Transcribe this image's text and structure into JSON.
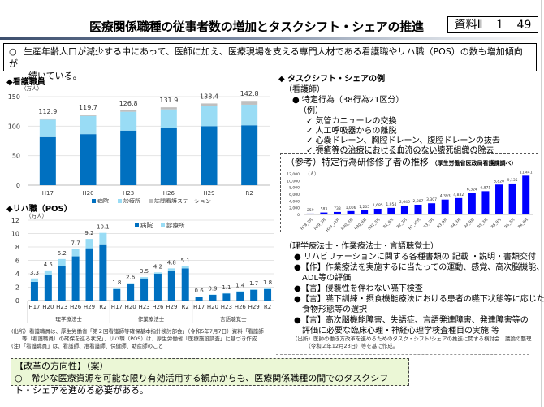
{
  "header": {
    "title": "医療関係職種の従事者数の増加とタスクシフト・シェアの推進",
    "doc_id": "資料Ⅱ－１－49"
  },
  "summary": {
    "mark": "○",
    "line1": "生産年齢人口が減少する中にあって、医師に加え、医療現場を支える専門人材である看護職やリハ職（POS）の数も増加傾向が",
    "line2": "続いている。"
  },
  "colors": {
    "hospital": "#0070c0",
    "clinic": "#99dcf5",
    "station": "#bfbfbf",
    "ref_bar": "#0000ff",
    "reform_bg": "#ebf7d6"
  },
  "chart_data": [
    {
      "id": "nursing",
      "type": "bar",
      "stacked": true,
      "title": "◆看護職員",
      "unit_label": "（万人）",
      "categories": [
        "H17",
        "H20",
        "H23",
        "H26",
        "H29",
        "R2"
      ],
      "series": [
        {
          "name": "病院",
          "values": [
            81.5,
            86.5,
            92.5,
            97.5,
            100.0,
            101.5
          ]
        },
        {
          "name": "診療所",
          "values": [
            29.5,
            30.7,
            31.8,
            30.9,
            33.9,
            34.8
          ]
        },
        {
          "name": "訪問看護ステーション",
          "values": [
            1.9,
            2.5,
            2.5,
            3.5,
            4.5,
            6.5
          ]
        }
      ],
      "totals": [
        "112.9",
        "119.7",
        "126.8",
        "131.9",
        "138.4",
        "142.8"
      ],
      "ylim": [
        0,
        150
      ],
      "yticks": [
        "0",
        "50",
        "100",
        "150"
      ],
      "grid": true,
      "legend": "bottom"
    },
    {
      "id": "rehab",
      "type": "bar",
      "stacked": true,
      "title": "◆リハ職（POS）",
      "unit_label": "（万人）",
      "groups": [
        {
          "name": "理学療法士",
          "categories": [
            "H17",
            "H20",
            "H23",
            "H26",
            "H29",
            "R2"
          ],
          "hospital": [
            2.8,
            3.8,
            5.2,
            6.6,
            7.8,
            8.4
          ],
          "clinic": [
            0.5,
            0.7,
            1.0,
            1.1,
            1.4,
            1.7
          ],
          "totals": [
            "3.3",
            "4.5",
            "6.2",
            "7.7",
            "9.2",
            "10.1"
          ]
        },
        {
          "name": "作業療法士",
          "categories": [
            "H17",
            "H20",
            "H23",
            "H26",
            "H29",
            "R2"
          ],
          "hospital": [
            1.7,
            2.5,
            3.3,
            4.0,
            4.5,
            4.8
          ],
          "clinic": [
            0.1,
            0.1,
            0.2,
            0.2,
            0.3,
            0.3
          ],
          "totals": [
            "1.8",
            "2.6",
            "3.5",
            "4.2",
            "4.8",
            "5.1"
          ]
        },
        {
          "name": "言語聴覚士",
          "categories": [
            "H17",
            "H20",
            "H23",
            "H26",
            "H29",
            "R2"
          ],
          "hospital": [
            0.55,
            0.85,
            1.05,
            1.35,
            1.6,
            1.7
          ],
          "clinic": [
            0.05,
            0.05,
            0.05,
            0.05,
            0.1,
            0.1
          ],
          "totals": [
            "0.6",
            "0.9",
            "1.1",
            "1.4",
            "1.7",
            "1.8"
          ]
        }
      ],
      "series_names": [
        "病院",
        "診療所"
      ],
      "ylim": [
        0,
        12
      ],
      "yticks": [
        "0",
        "2",
        "4",
        "6",
        "8",
        "10",
        "12"
      ],
      "grid": true,
      "legend": "top-center"
    },
    {
      "id": "tokutei",
      "type": "bar",
      "title": "（参考）特定行為研修修了者の推移",
      "subtitle": "（厚生労働省医政局看護課調べ）",
      "unit_label": "（人）",
      "categories": [
        "H28_3月",
        "H29_3月",
        "H29_12月",
        "H30_3月",
        "H30_9月",
        "H31_3月",
        "R1_9月",
        "R2_7月",
        "R2_10月",
        "R3_3月",
        "R3_9月",
        "R4_3月",
        "R4_9月",
        "R5_3月",
        "R5_9月",
        "R6_3月",
        "R6_9月"
      ],
      "values": [
        259,
        583,
        738,
        1006,
        1205,
        1685,
        1954,
        2646,
        2887,
        3307,
        4393,
        4832,
        6324,
        6875,
        8820,
        9135,
        11441
      ],
      "labels": [
        "259",
        "583",
        "738",
        "1,006",
        "1,205",
        "1,685",
        "1,954",
        "2,646",
        "2,887",
        "3,307",
        "4,393",
        "4,832",
        "6,324",
        "6,875",
        "8,820",
        "9,135",
        "11,441"
      ],
      "ylim": [
        0,
        12000
      ],
      "yticks": [
        "0",
        "2,000",
        "4,000",
        "6,000",
        "8,000",
        "10,000",
        "12,000"
      ],
      "grid": false
    }
  ],
  "nurse_legend": [
    "病院",
    "診療所",
    "訪問看護ステーション"
  ],
  "rehab_legend": [
    "病院",
    "診療所"
  ],
  "task_shift": {
    "heading": "◆ タスクシフト・シェアの例",
    "nurse_label": "（看護師）",
    "bullet": "● 特定行為（38行為21区分）",
    "example_label": "（例）",
    "examples": [
      "✓ 気管カニューレの交換",
      "✓ 人工呼吸器からの離脱",
      "✓ 心嚢ドレーン、胸腔ドレーン、腹腔ドレーンの抜去",
      "✓ 褥瘡等の治療における血流のない壊死組織の除去"
    ],
    "pos_label": "（理学療法士・作業療法士・言語聴覚士）",
    "pos_items": [
      {
        "line1": "● リハビリテーションに関する各種書類の 記載 ・説明・書類交付",
        "line2": ""
      },
      {
        "line1": "●【作】作業療法を実施するに当たっての運動、感覚、高次脳機能、",
        "line2": "ADL等の評価"
      },
      {
        "line1": "●【言】侵襲性を伴わない嚥下検査",
        "line2": ""
      },
      {
        "line1": "●【言】嚥下訓練・摂食機能療法における患者の嚥下状態等に応じた",
        "line2": "食物形態等の選択"
      },
      {
        "line1": "●【言】高次脳機能障害、失語症、言語発達障害、発達障害等の",
        "line2": "評価に必要な臨床心理・神経心理学検査種目の実施 等"
      }
    ]
  },
  "notes": {
    "left": [
      "(出所）看護職員は、厚生労働省「第２回看護師等確保基本指針検討部会」（令和5年7月7日）資料「看護師",
      "　　等（看護職員）の確保を巡る状況」、リハ職（POS）は、厚生労働省「医療施設調査」に基づき作成",
      "(注)「看護職員」は、看護師、准看護師、保健師、助産師のこと"
    ],
    "right": [
      "（出所）医師の働き方改革を進めるためのタスク・シフト/シェアの推進に関する検討会　議論の整理",
      "　　　（令和２年12月23日）等を基に作成。"
    ]
  },
  "reform": {
    "heading": "【改革の方向性】（案）",
    "text": "○　希少な医療資源を可能な限り有効活用する観点からも、医療関係職種の間でのタスクシフト・シェアを進める必要がある。"
  }
}
